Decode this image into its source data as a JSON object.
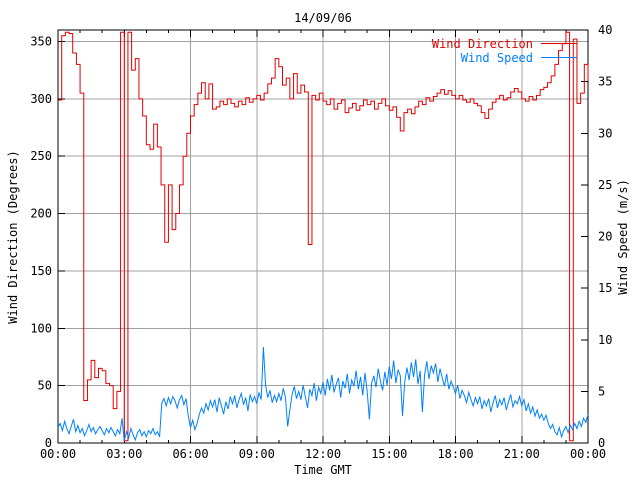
{
  "colors": {
    "background": "#ffffff",
    "border": "#000000",
    "grid": "#a0a0a0",
    "text": "#000000"
  },
  "chart_data": {
    "type": "line",
    "title": "14/09/06",
    "xlabel": "Time GMT",
    "ylabel_left": "Wind Direction (Degrees)",
    "ylabel_right": "Wind Speed (m/s)",
    "grid": true,
    "x_range_hours": [
      0,
      24
    ],
    "x_major_tick_hours": 3,
    "x_minor_tick_hours": 1,
    "x_ticks": [
      "00:00",
      "03:00",
      "06:00",
      "09:00",
      "12:00",
      "15:00",
      "18:00",
      "21:00",
      "00:00"
    ],
    "y_left": {
      "min": 0,
      "max": 360,
      "ticks": [
        0,
        50,
        100,
        150,
        200,
        250,
        300,
        350
      ]
    },
    "y_right": {
      "min": 0,
      "max": 40,
      "ticks": [
        0,
        5,
        10,
        15,
        20,
        25,
        30,
        35,
        40
      ]
    },
    "legend": {
      "position": "top-right",
      "entries": [
        {
          "label": "Wind Direction",
          "color": "#e00000"
        },
        {
          "label": "Wind Speed",
          "color": "#0080ff"
        }
      ]
    },
    "series": [
      {
        "name": "Wind Direction",
        "axis": "left",
        "units": "degrees",
        "style": "steps",
        "color": "#e00000",
        "start_hour": 0,
        "sample_interval_hours": 0.166667,
        "values": [
          299,
          355,
          358,
          357,
          340,
          330,
          305,
          37,
          55,
          72,
          57,
          65,
          63,
          52,
          50,
          30,
          45,
          358,
          2,
          358,
          325,
          335,
          300,
          285,
          260,
          256,
          278,
          258,
          225,
          175,
          225,
          186,
          200,
          225,
          250,
          270,
          285,
          295,
          305,
          314,
          300,
          313,
          291,
          293,
          298,
          295,
          300,
          296,
          293,
          298,
          295,
          301,
          297,
          300,
          303,
          299,
          305,
          313,
          318,
          335,
          328,
          312,
          318,
          300,
          322,
          305,
          312,
          306,
          173,
          303,
          299,
          305,
          298,
          295,
          300,
          291,
          296,
          299,
          288,
          292,
          296,
          290,
          294,
          299,
          295,
          298,
          291,
          296,
          300,
          294,
          290,
          293,
          284,
          272,
          288,
          291,
          287,
          293,
          298,
          295,
          301,
          298,
          302,
          305,
          308,
          304,
          307,
          303,
          300,
          303,
          299,
          297,
          300,
          296,
          294,
          288,
          283,
          291,
          297,
          300,
          303,
          299,
          301,
          306,
          309,
          306,
          300,
          298,
          302,
          299,
          303,
          308,
          310,
          314,
          320,
          330,
          342,
          348,
          358,
          2,
          352,
          296,
          305,
          330,
          316
        ]
      },
      {
        "name": "Wind Speed",
        "axis": "right",
        "units": "m/s",
        "style": "line",
        "color": "#0080ff",
        "start_hour": 0,
        "sample_interval_hours": 0.1,
        "values": [
          1.5,
          1.9,
          1.2,
          2.1,
          1.4,
          0.9,
          1.6,
          2.3,
          1.1,
          1.7,
          1.0,
          1.4,
          0.7,
          1.2,
          1.8,
          1.1,
          1.5,
          0.9,
          1.3,
          1.6,
          1.2,
          0.8,
          1.4,
          1.0,
          1.5,
          1.1,
          0.7,
          1.3,
          0.9,
          2.4,
          0.2,
          1.1,
          0.5,
          1.4,
          0.8,
          0.3,
          1.0,
          1.3,
          0.7,
          1.1,
          0.6,
          1.2,
          0.9,
          1.4,
          0.8,
          1.1,
          0.6,
          3.9,
          4.3,
          3.6,
          4.4,
          3.8,
          4.5,
          4.1,
          3.4,
          4.2,
          4.6,
          3.7,
          4.3,
          2.6,
          1.5,
          2.2,
          1.3,
          1.9,
          2.8,
          3.4,
          2.9,
          3.8,
          3.2,
          4.1,
          3.5,
          4.2,
          3.0,
          4.4,
          3.6,
          2.8,
          4.0,
          3.3,
          4.5,
          3.8,
          4.6,
          3.4,
          4.2,
          4.8,
          3.7,
          4.4,
          3.1,
          4.7,
          4.0,
          4.5,
          3.8,
          4.9,
          4.2,
          9.3,
          5.6,
          4.4,
          5.1,
          3.9,
          4.6,
          4.0,
          4.8,
          4.1,
          5.3,
          4.4,
          1.6,
          3.2,
          4.7,
          5.5,
          4.3,
          5.0,
          4.2,
          5.6,
          4.5,
          3.4,
          5.2,
          4.6,
          5.8,
          4.1,
          5.4,
          4.8,
          5.9,
          4.6,
          6.2,
          5.1,
          6.6,
          4.9,
          5.7,
          6.3,
          4.4,
          6.0,
          5.3,
          6.7,
          4.8,
          6.1,
          5.5,
          7.0,
          5.2,
          6.4,
          4.6,
          6.8,
          5.0,
          2.3,
          5.8,
          6.5,
          5.4,
          7.2,
          6.0,
          5.1,
          6.9,
          5.6,
          7.4,
          6.2,
          8.0,
          5.8,
          7.1,
          6.5,
          2.6,
          5.9,
          7.3,
          6.1,
          7.8,
          6.4,
          8.1,
          5.7,
          7.0,
          3.0,
          6.6,
          7.9,
          6.2,
          7.5,
          6.8,
          7.7,
          5.9,
          7.2,
          6.3,
          5.5,
          6.7,
          5.2,
          6.0,
          5.4,
          4.8,
          5.6,
          4.3,
          5.1,
          4.6,
          3.9,
          4.9,
          4.2,
          3.6,
          4.4,
          3.8,
          4.5,
          3.3,
          4.1,
          3.6,
          4.3,
          3.0,
          3.9,
          4.6,
          3.4,
          4.2,
          3.7,
          4.4,
          3.2,
          4.0,
          4.7,
          3.5,
          4.1,
          3.8,
          4.5,
          3.6,
          4.2,
          3.1,
          3.8,
          2.9,
          3.5,
          2.6,
          3.2,
          2.4,
          2.8,
          2.2,
          2.7,
          1.9,
          1.4,
          1.8,
          1.1,
          0.8,
          1.5,
          0.6,
          1.2,
          1.6,
          1.0,
          1.7,
          1.3,
          1.9,
          1.4,
          2.1,
          1.6,
          2.4,
          2.0,
          2.8
        ]
      }
    ]
  }
}
